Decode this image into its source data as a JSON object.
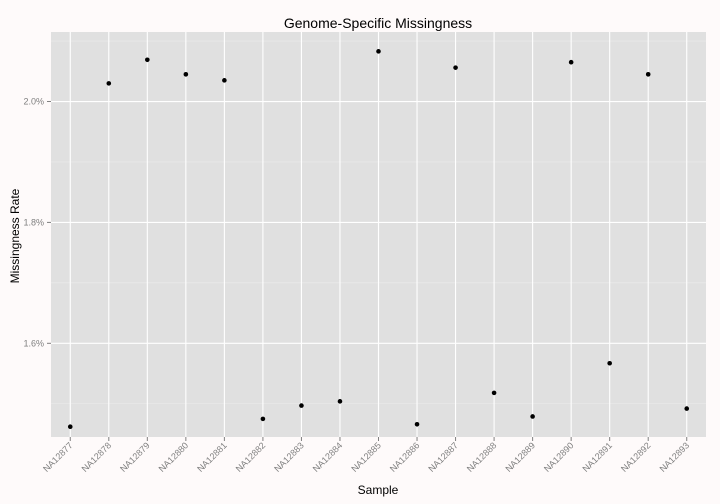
{
  "chart_data": {
    "type": "scatter",
    "title": "Genome-Specific Missingness",
    "xlabel": "Sample",
    "ylabel": "Missingness Rate",
    "categories": [
      "NA12877",
      "NA12878",
      "NA12879",
      "NA12880",
      "NA12881",
      "NA12882",
      "NA12883",
      "NA12884",
      "NA12885",
      "NA12886",
      "NA12887",
      "NA12888",
      "NA12889",
      "NA12890",
      "NA12891",
      "NA12892",
      "NA12893"
    ],
    "values": [
      1.462,
      2.03,
      2.069,
      2.045,
      2.035,
      1.475,
      1.497,
      1.504,
      2.083,
      1.466,
      2.056,
      1.518,
      1.479,
      2.065,
      1.567,
      2.045,
      1.492
    ],
    "y_unit": "%",
    "ylim": [
      1.445,
      2.115
    ],
    "yticks": [
      1.6,
      1.8,
      2.0
    ],
    "ytick_labels": [
      "1.6%",
      "1.8%",
      "2.0%"
    ],
    "grid": true,
    "colors": {
      "panel": "#e0e0e0",
      "grid_major": "#ffffff",
      "grid_minor": "#ececec",
      "point": "#000000",
      "background": "#fefafa"
    }
  }
}
